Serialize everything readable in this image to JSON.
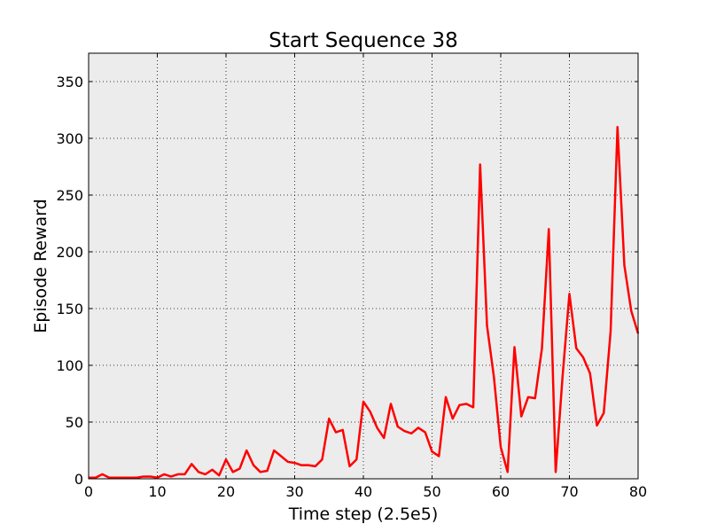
{
  "chart_data": {
    "type": "line",
    "title": "Start Sequence 38",
    "xlabel": "Time step (2.5e5)",
    "ylabel": "Episode Reward",
    "xlim": [
      0,
      80
    ],
    "ylim": [
      0,
      375
    ],
    "xticks": [
      0,
      10,
      20,
      30,
      40,
      50,
      60,
      70,
      80
    ],
    "yticks": [
      0,
      50,
      100,
      150,
      200,
      250,
      300,
      350
    ],
    "grid": true,
    "legend": "none",
    "colors": {
      "line": "#ff0000",
      "plot_bg": "#ececec"
    },
    "series": [
      {
        "x": [
          0,
          1,
          2,
          3,
          4,
          5,
          6,
          7,
          8,
          9,
          10,
          11,
          12,
          13,
          14,
          15,
          16,
          17,
          18,
          19,
          20,
          21,
          22,
          23,
          24,
          25,
          26,
          27,
          28,
          29,
          30,
          31,
          32,
          33,
          34,
          35,
          36,
          37,
          38,
          39,
          40,
          41,
          42,
          43,
          44,
          45,
          46,
          47,
          48,
          49,
          50,
          51,
          52,
          53,
          54,
          55,
          56,
          57,
          58,
          59,
          60,
          61,
          62,
          63,
          64,
          65,
          66,
          67,
          68,
          69,
          70,
          71,
          72,
          73,
          74,
          75,
          76,
          77,
          78,
          79,
          80
        ],
        "values": [
          1,
          1,
          4,
          1,
          1,
          1,
          1,
          1,
          2,
          2,
          1,
          4,
          2,
          4,
          4,
          13,
          6,
          4,
          8,
          3,
          17,
          6,
          9,
          25,
          12,
          6,
          7,
          25,
          20,
          15,
          14,
          12,
          12,
          11,
          17,
          53,
          41,
          43,
          11,
          17,
          68,
          59,
          45,
          36,
          66,
          46,
          42,
          40,
          45,
          41,
          24,
          20,
          72,
          53,
          65,
          66,
          63,
          277,
          135,
          90,
          28,
          6,
          116,
          55,
          72,
          71,
          115,
          220,
          6,
          90,
          163,
          115,
          107,
          93,
          47,
          58,
          130,
          310,
          188,
          148,
          128
        ]
      }
    ]
  }
}
